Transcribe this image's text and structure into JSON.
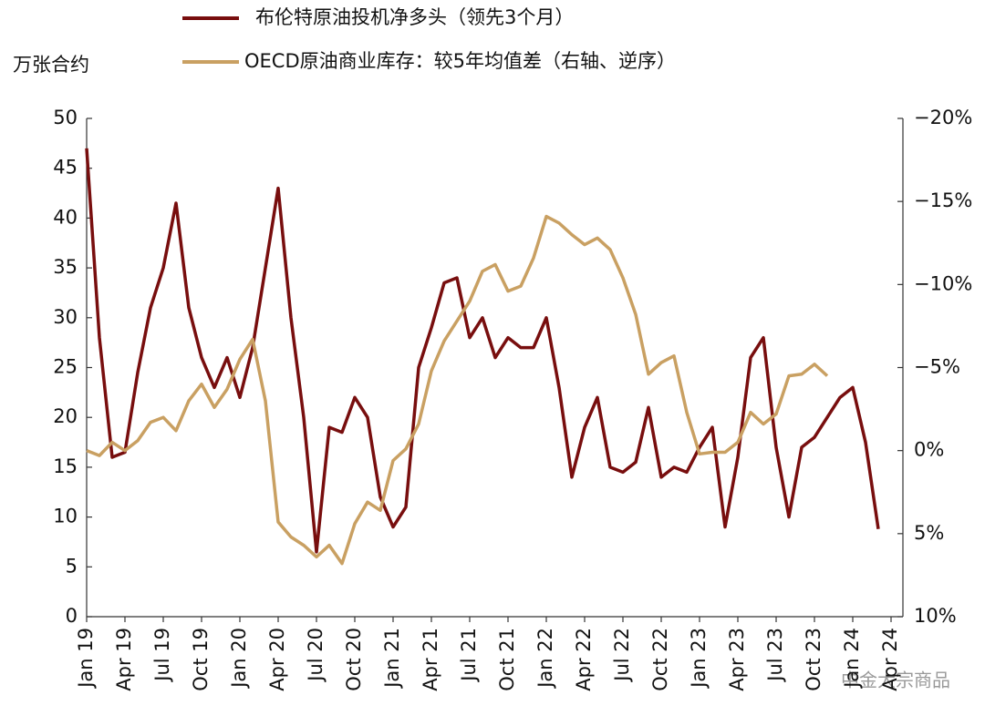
{
  "chart_data": {
    "type": "line",
    "y_label": "万张合约",
    "watermark": "中金大宗商品",
    "categories": [
      "Jan 19",
      null,
      null,
      "Apr 19",
      null,
      null,
      "Jul 19",
      null,
      null,
      "Oct 19",
      null,
      null,
      "Jan 20",
      null,
      null,
      "Apr 20",
      null,
      null,
      "Jul 20",
      null,
      null,
      "Oct 20",
      null,
      null,
      "Jan 21",
      null,
      null,
      "Apr 21",
      null,
      null,
      "Jul 21",
      null,
      null,
      "Oct 21",
      null,
      null,
      "Jan 22",
      null,
      null,
      "Apr 22",
      null,
      null,
      "Jul 22",
      null,
      null,
      "Oct 22",
      null,
      null,
      "Jan 23",
      null,
      null,
      "Apr 23",
      null,
      null,
      "Jul 23",
      null,
      null,
      "Oct 23",
      null,
      null,
      "Jan 24",
      null,
      null,
      "Apr 24"
    ],
    "series": [
      {
        "name": "布伦特原油投机净多头（领先3个月）",
        "color": "#780e0e",
        "values": [
          47,
          28,
          16,
          16.5,
          24.5,
          31,
          35,
          41.5,
          31,
          26,
          23,
          26,
          22,
          27,
          35,
          43,
          30,
          20,
          6.5,
          19,
          18.5,
          22,
          20,
          12,
          9,
          11,
          25,
          29,
          33.5,
          34,
          28,
          30,
          26,
          28,
          27,
          27,
          30,
          23,
          14,
          19,
          22,
          15,
          14.5,
          15.5,
          21,
          14,
          15,
          14.5,
          17,
          19,
          9,
          16,
          26,
          28,
          17,
          10,
          17,
          18,
          20,
          22,
          23,
          17.5,
          8.8,
          null
        ]
      },
      {
        "name": "OECD原油商业库存：较5年均值差（右轴、逆序）",
        "color": "#c9a062",
        "axis": "y2",
        "values": [
          0,
          0.3,
          -0.5,
          0,
          -0.6,
          -1.7,
          -2,
          -1.2,
          -3,
          -4,
          -2.6,
          -3.7,
          -5.5,
          -6.7,
          -3,
          4.3,
          5.2,
          5.7,
          6.4,
          5.7,
          6.8,
          4.4,
          3.1,
          3.6,
          0.6,
          -0.1,
          -1.6,
          -4.8,
          -6.6,
          -7.8,
          -9,
          -10.8,
          -11.2,
          -9.6,
          -9.9,
          -11.6,
          -14.1,
          -13.7,
          -13,
          -12.4,
          -12.8,
          -12.1,
          -10.4,
          -8.2,
          -4.6,
          -5.3,
          -5.7,
          -2.3,
          0.2,
          0.1,
          0.1,
          -0.5,
          -2.3,
          -1.6,
          -2.2,
          -4.5,
          -4.6,
          -5.2,
          -4.5,
          null,
          null,
          null,
          null,
          null
        ]
      }
    ],
    "ylim": [
      0,
      50
    ],
    "yticks": [
      0,
      5,
      10,
      15,
      20,
      25,
      30,
      35,
      40,
      45,
      50
    ],
    "y2lim": [
      10,
      -20
    ],
    "y2ticks": [
      {
        "value": -20,
        "label": "−20%"
      },
      {
        "value": -15,
        "label": "−15%"
      },
      {
        "value": -10,
        "label": "−10%"
      },
      {
        "value": -5,
        "label": "−5%"
      },
      {
        "value": 0,
        "label": "0%"
      },
      {
        "value": 5,
        "label": "5%"
      },
      {
        "value": 10,
        "label": "10%"
      }
    ],
    "grid": false
  }
}
